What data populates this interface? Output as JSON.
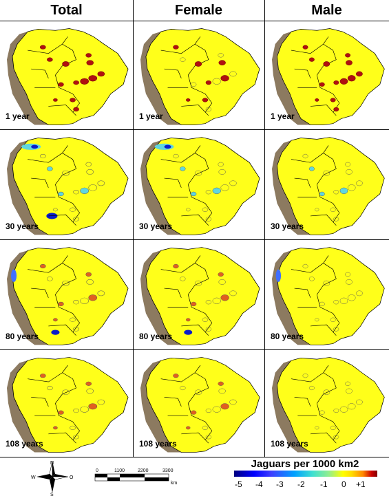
{
  "headers": [
    "Total",
    "Female",
    "Male"
  ],
  "rows": [
    "1 year",
    "30 years",
    "80 years",
    "108 years"
  ],
  "legend": {
    "title": "Jaguars per 1000 km2",
    "ticks": [
      "-5",
      "-4",
      "-3",
      "-2",
      "-1",
      "0",
      "+1"
    ]
  },
  "compass": {
    "n": "N",
    "s": "S",
    "e": "O",
    "w": "W"
  },
  "scale": {
    "labels": [
      "0",
      "1100",
      "2200",
      "3300"
    ],
    "unit": "km"
  },
  "colors": {
    "land": "#ffff1a",
    "andes": "#8c7a60",
    "high": "#b01010",
    "low": "#0a1cc8",
    "mid_low": "#5fd6e0"
  }
}
